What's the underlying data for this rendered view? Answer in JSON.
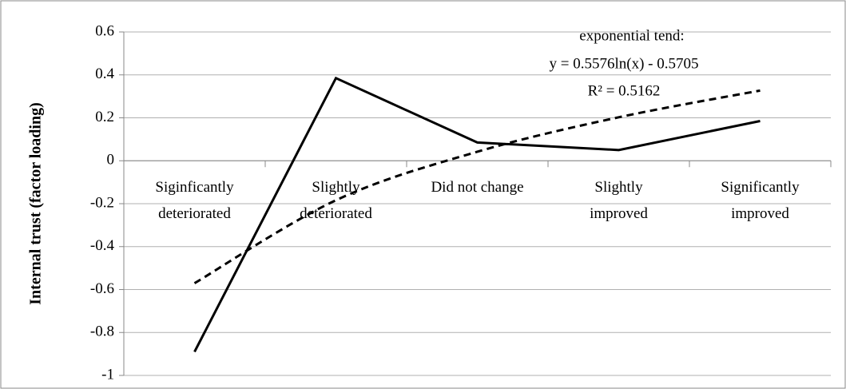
{
  "chart_data": {
    "type": "line",
    "y_label": "Internal trust (factor loading)",
    "categories": [
      "Siginficantly\ndeteriorated",
      "Slightly\ndeteriorated",
      "Did not change",
      "Slightly\nimproved",
      "Significantly\nimproved"
    ],
    "series": [
      {
        "color": "#000000",
        "dashed": false,
        "smooth": false,
        "values": [
          -0.89,
          0.385,
          0.085,
          0.05,
          0.185
        ]
      },
      {
        "color": "#000000",
        "dashed": true,
        "smooth": true,
        "values": [
          -0.5705,
          -0.184,
          0.042,
          0.2025,
          0.327
        ]
      }
    ],
    "annotations": [
      "exponential tend:",
      "y = 0.5576ln(x) - 0.5705",
      "R² = 0.5162"
    ],
    "ylim": [
      -1,
      0.6
    ],
    "yticks": [
      -1,
      -0.8,
      -0.6,
      -0.4,
      -0.2,
      0,
      0.2,
      0.4,
      0.6
    ],
    "grid": true
  }
}
